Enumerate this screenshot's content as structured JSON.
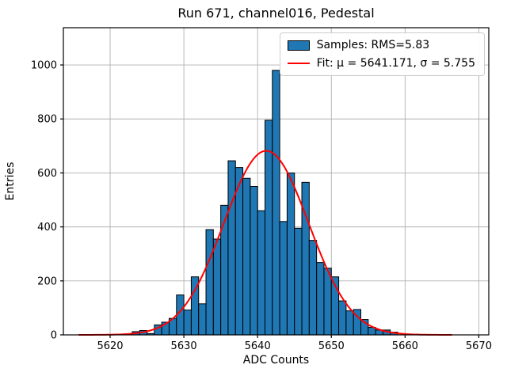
{
  "figure": {
    "background_color": "#ffffff"
  },
  "legend": {
    "samples_label": "Samples: RMS=5.83",
    "fit_label": "Fit: μ = 5641.171, σ = 5.755"
  },
  "chart_data": {
    "type": "bar",
    "subtype": "histogram",
    "title": "Run 671, channel016, Pedestal",
    "xlabel": "ADC Counts",
    "ylabel": "Entries",
    "grid": true,
    "legend_position": "upper right",
    "xlim": [
      5613.66,
      5671.35
    ],
    "ylim": [
      0,
      1138
    ],
    "x_ticks": [
      5620,
      5630,
      5640,
      5650,
      5660,
      5670
    ],
    "y_ticks": [
      0,
      200,
      400,
      600,
      800,
      1000
    ],
    "bin_width": 1,
    "bin_left_edges": [
      5623,
      5624,
      5625,
      5626,
      5627,
      5628,
      5629,
      5630,
      5631,
      5632,
      5633,
      5634,
      5635,
      5636,
      5637,
      5638,
      5639,
      5640,
      5641,
      5642,
      5643,
      5644,
      5645,
      5646,
      5647,
      5648,
      5649,
      5650,
      5651,
      5652,
      5653,
      5654,
      5655,
      5656,
      5657,
      5658
    ],
    "counts": [
      12,
      16,
      5,
      37,
      47,
      61,
      148,
      92,
      215,
      115,
      390,
      355,
      480,
      645,
      620,
      580,
      550,
      460,
      795,
      980,
      420,
      600,
      395,
      565,
      350,
      268,
      247,
      215,
      126,
      89,
      94,
      57,
      28,
      18,
      18,
      10
    ],
    "series_name": "Samples",
    "rms": 5.83,
    "fit": {
      "name": "Fit",
      "mu": 5641.171,
      "sigma": 5.755,
      "amplitude": 682,
      "x_start": 5615.8,
      "x_end": 5666.3
    },
    "colors": {
      "bar_fill": "#1f77b4",
      "bar_edge": "#000000",
      "fit_line": "#ff0000",
      "grid": "#b0b0b0",
      "frame": "#000000",
      "text": "#000000"
    }
  }
}
